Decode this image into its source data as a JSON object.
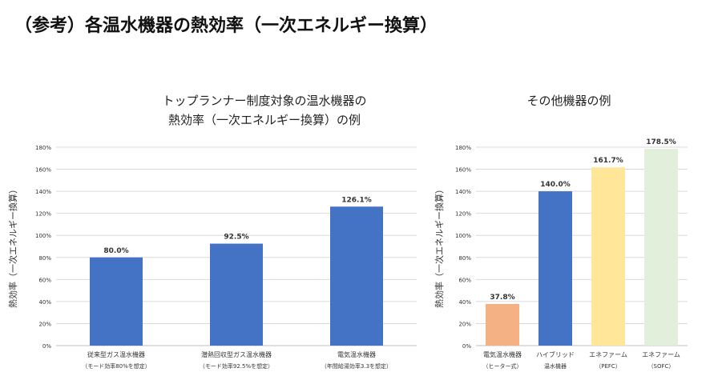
{
  "slide": {
    "title": "（参考）各温水機器の熱効率（一次エネルギー換算）"
  },
  "chart_data": [
    {
      "type": "bar",
      "title_line1": "トップランナー制度対象の温水機器の",
      "title_line2": "熱効率（一次エネルギー換算）の例",
      "ylabel": "熱効率（一次エネルギー換算）",
      "ylim": [
        0,
        180
      ],
      "yticks": [
        "0%",
        "20%",
        "40%",
        "60%",
        "80%",
        "100%",
        "120%",
        "140%",
        "160%",
        "180%"
      ],
      "categories": [
        {
          "line1": "従来型ガス温水機器",
          "line2": "（モード効率80%を想定）"
        },
        {
          "line1": "潜熱回収型ガス温水機器",
          "line2": "（モード効率92.5%を想定）"
        },
        {
          "line1": "電気温水機器",
          "line2": "（年間給湯効率3.3を想定）"
        }
      ],
      "values": [
        80.0,
        92.5,
        126.1
      ],
      "data_labels": [
        "80.0%",
        "92.5%",
        "126.1%"
      ],
      "colors": [
        "#4472C4",
        "#4472C4",
        "#4472C4"
      ],
      "grid": true
    },
    {
      "type": "bar",
      "title_line1": "その他機器の例",
      "title_line2": "",
      "ylabel": "熱効率（一次エネルギー換算）",
      "ylim": [
        0,
        180
      ],
      "yticks": [
        "0%",
        "20%",
        "40%",
        "60%",
        "80%",
        "100%",
        "120%",
        "140%",
        "160%",
        "180%"
      ],
      "categories": [
        {
          "line1": "電気温水機器",
          "line2": "（ヒーター式）"
        },
        {
          "line1": "ハイブリッド",
          "line2": "温水機器"
        },
        {
          "line1": "エネファーム",
          "line2": "（PEFC）"
        },
        {
          "line1": "エネファーム",
          "line2": "（SOFC）"
        }
      ],
      "values": [
        37.8,
        140.0,
        161.7,
        178.5
      ],
      "data_labels": [
        "37.8%",
        "140.0%",
        "161.7%",
        "178.5%"
      ],
      "colors": [
        "#F4B183",
        "#4472C4",
        "#FFE699",
        "#E2EFDA"
      ],
      "grid": true
    }
  ]
}
